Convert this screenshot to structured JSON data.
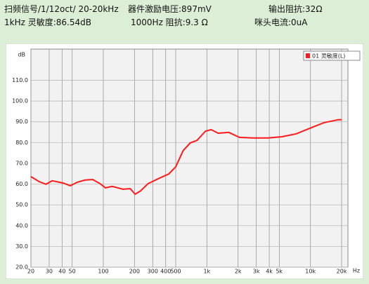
{
  "header": {
    "signal": "扫频信号/1/12oct/ 20-20kHz",
    "voltage": "器件激励电压:897mV",
    "output_impedance": "输出阻抗:32Ω",
    "sensitivity": "1kHz 灵敏度:86.54dB",
    "impedance": "1000Hz 阻抗:9.3 Ω",
    "mic_current": "咪头电流:0uA"
  },
  "chart_data": {
    "type": "line",
    "y_label": "dB",
    "x_label": "Hz",
    "log_x": true,
    "grid": true,
    "legend": "top-right",
    "x": [
      20,
      24,
      28,
      32,
      41,
      48,
      56,
      66,
      79,
      93,
      105,
      122,
      155,
      182,
      203,
      230,
      270,
      340,
      430,
      500,
      590,
      690,
      805,
      970,
      1100,
      1290,
      1630,
      2060,
      2800,
      3850,
      5300,
      7300,
      9900,
      13500,
      18600,
      20000
    ],
    "series": [
      {
        "name": "01 灵敏度(L)",
        "color": "#ff1a1a",
        "values": [
          63.6,
          61.2,
          59.9,
          61.6,
          60.5,
          59.2,
          60.9,
          61.9,
          62.2,
          60.2,
          58.2,
          58.9,
          57.5,
          57.8,
          55.1,
          56.8,
          60.2,
          62.6,
          64.9,
          68.3,
          76.1,
          79.8,
          81.1,
          85.5,
          86.2,
          84.5,
          84.9,
          82.5,
          82.2,
          82.2,
          82.8,
          84.2,
          86.9,
          89.6,
          91.0,
          91.0
        ]
      }
    ],
    "xlim": [
      20,
      23000
    ],
    "ylim": [
      20,
      125
    ],
    "xticks": [
      20,
      30,
      40,
      50,
      100,
      200,
      300,
      400,
      500,
      {
        "value": 1000,
        "label": "1k"
      },
      {
        "value": 2000,
        "label": "2k"
      },
      {
        "value": 3000,
        "label": "3k"
      },
      {
        "value": 4000,
        "label": "4k"
      },
      {
        "value": 5000,
        "label": "5k"
      },
      {
        "value": 10000,
        "label": "10k"
      },
      {
        "value": 20000,
        "label": "20k"
      }
    ],
    "yticks": [
      {
        "value": 20,
        "label": "20.0"
      },
      {
        "value": 30,
        "label": "30.0"
      },
      {
        "value": 40,
        "label": "40.0"
      },
      {
        "value": 50,
        "label": "50.0"
      },
      {
        "value": 60,
        "label": "60.0"
      },
      {
        "value": 70,
        "label": "70.0"
      },
      {
        "value": 80,
        "label": "80.0"
      },
      {
        "value": 90,
        "label": "90.0"
      },
      {
        "value": 100,
        "label": "100.0"
      },
      {
        "value": 110,
        "label": "110.0"
      }
    ]
  }
}
